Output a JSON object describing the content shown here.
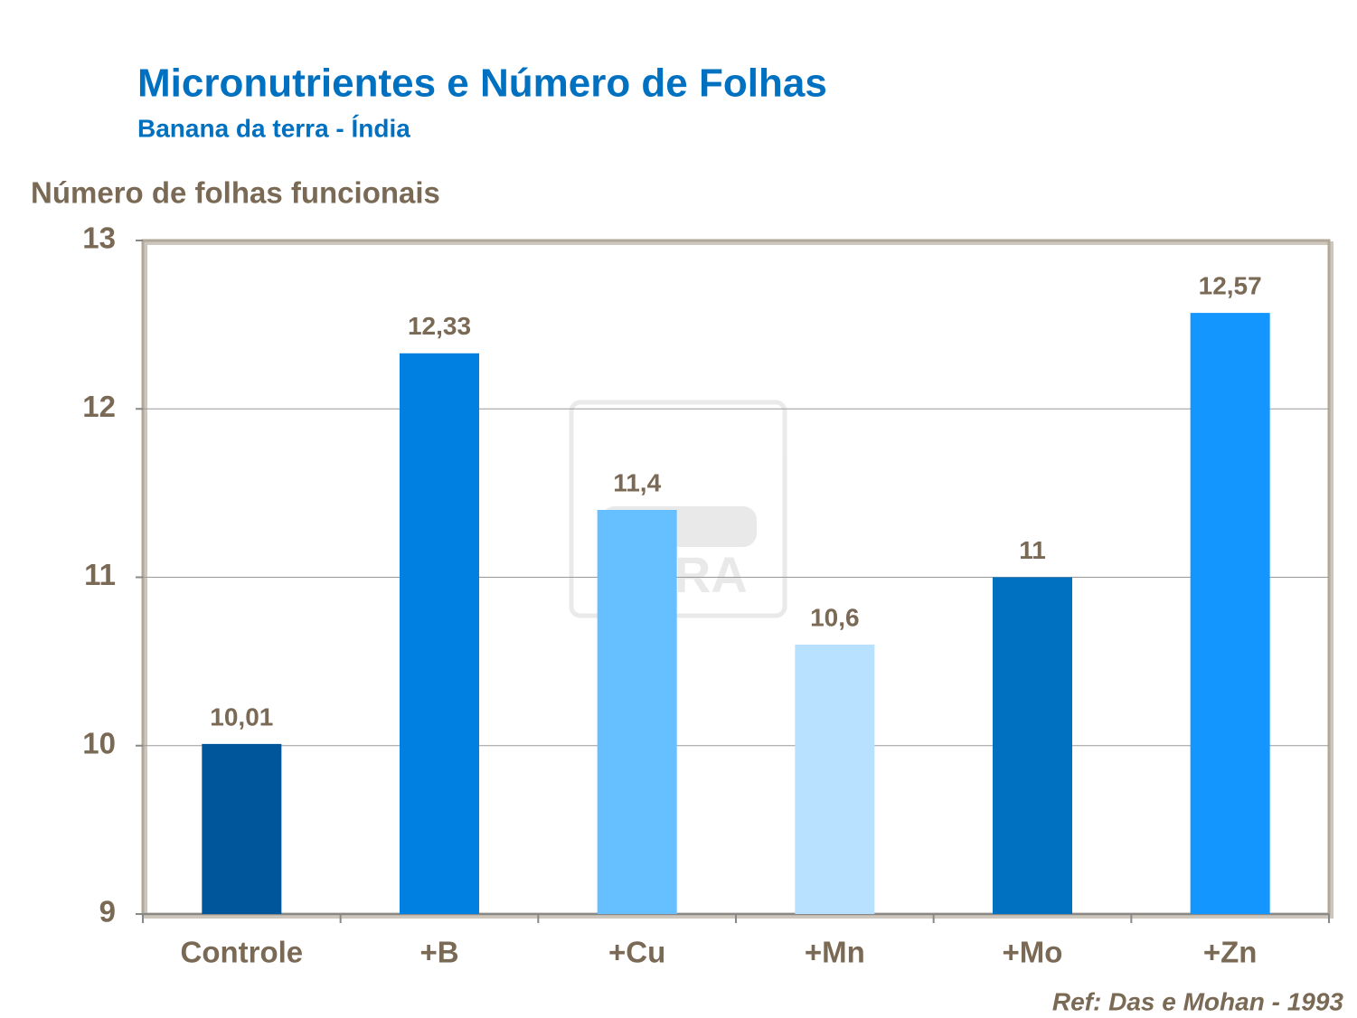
{
  "chart_data": {
    "type": "bar",
    "title": "Micronutrientes e Número de Folhas",
    "subtitle": "Banana da terra - Índia",
    "y_label": "Número de folhas funcionais",
    "note": "Ref: Das e Mohan - 1993",
    "watermark": "YARA",
    "categories": [
      "Controle",
      "+B",
      "+Cu",
      "+Mn",
      "+Mo",
      "+Zn"
    ],
    "values": [
      10.01,
      12.33,
      11.4,
      10.6,
      11,
      12.57
    ],
    "value_labels": [
      "10,01",
      "12,33",
      "11,4",
      "10,6",
      "11",
      "12,57"
    ],
    "colors": [
      "#00569a",
      "#0080e0",
      "#66bfff",
      "#b8e0ff",
      "#0070c0",
      "#1496ff"
    ],
    "ylim": [
      9,
      13
    ],
    "yticks": [
      9,
      10,
      11,
      12,
      13
    ],
    "grid": true
  }
}
